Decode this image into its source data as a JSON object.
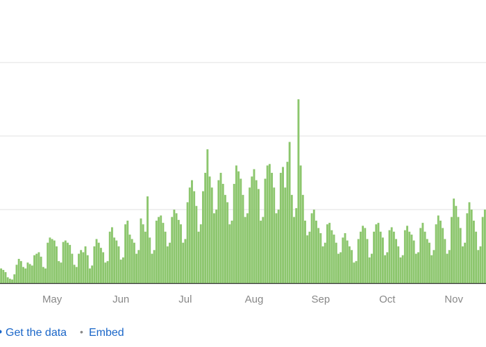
{
  "chart_data": {
    "type": "bar",
    "color": "#8cc66d",
    "grid": true,
    "ylim": [
      0,
      3.85
    ],
    "yticks": [
      0,
      1,
      2,
      3
    ],
    "categories": [
      null,
      null,
      null,
      null,
      null,
      null,
      null,
      null,
      null,
      null,
      null,
      null,
      null,
      null,
      null,
      null,
      null,
      null,
      null,
      null,
      null,
      null,
      null,
      "May",
      null,
      null,
      null,
      null,
      null,
      null,
      null,
      null,
      null,
      null,
      null,
      null,
      null,
      null,
      null,
      null,
      null,
      null,
      null,
      null,
      null,
      null,
      null,
      null,
      null,
      null,
      null,
      null,
      null,
      null,
      "Jun",
      null,
      null,
      null,
      null,
      null,
      null,
      null,
      null,
      null,
      null,
      null,
      null,
      null,
      null,
      null,
      null,
      null,
      null,
      null,
      null,
      null,
      null,
      null,
      null,
      null,
      null,
      null,
      null,
      "Jul",
      null,
      null,
      null,
      null,
      null,
      null,
      null,
      null,
      null,
      null,
      null,
      null,
      null,
      null,
      null,
      null,
      null,
      null,
      null,
      null,
      null,
      null,
      null,
      null,
      null,
      null,
      null,
      null,
      null,
      null,
      "Aug",
      null,
      null,
      null,
      null,
      null,
      null,
      null,
      null,
      null,
      null,
      null,
      null,
      null,
      null,
      null,
      null,
      null,
      null,
      null,
      null,
      null,
      null,
      null,
      null,
      null,
      null,
      null,
      null,
      null,
      "Sep",
      null,
      null,
      null,
      null,
      null,
      null,
      null,
      null,
      null,
      null,
      null,
      null,
      null,
      null,
      null,
      null,
      null,
      null,
      null,
      null,
      null,
      null,
      null,
      null,
      null,
      null,
      null,
      null,
      null,
      "Oct",
      null,
      null,
      null,
      null,
      null,
      null,
      null,
      null,
      null,
      null,
      null,
      null,
      null,
      null,
      null,
      null,
      null,
      null,
      null,
      null,
      null,
      null,
      null,
      null,
      null,
      null,
      null,
      null,
      null,
      "Nov",
      null,
      null,
      null,
      null,
      null,
      null,
      null,
      null,
      null,
      null,
      null,
      null,
      null,
      null
    ],
    "values": [
      0.2,
      0.18,
      0.15,
      0.08,
      0.06,
      0.05,
      0.12,
      0.25,
      0.33,
      0.3,
      0.22,
      0.2,
      0.28,
      0.26,
      0.24,
      0.38,
      0.4,
      0.42,
      0.36,
      0.22,
      0.2,
      0.55,
      0.62,
      0.6,
      0.58,
      0.5,
      0.3,
      0.28,
      0.56,
      0.58,
      0.55,
      0.52,
      0.4,
      0.25,
      0.22,
      0.4,
      0.45,
      0.42,
      0.5,
      0.38,
      0.2,
      0.24,
      0.5,
      0.6,
      0.55,
      0.48,
      0.42,
      0.28,
      0.3,
      0.7,
      0.76,
      0.62,
      0.58,
      0.5,
      0.32,
      0.35,
      0.8,
      0.85,
      0.66,
      0.6,
      0.55,
      0.4,
      0.45,
      0.88,
      0.8,
      0.7,
      1.18,
      0.62,
      0.4,
      0.45,
      0.85,
      0.9,
      0.92,
      0.82,
      0.7,
      0.5,
      0.55,
      0.9,
      1.0,
      0.95,
      0.86,
      0.8,
      0.55,
      0.6,
      1.1,
      1.3,
      1.4,
      1.25,
      1.05,
      0.7,
      0.8,
      1.25,
      1.5,
      1.82,
      1.45,
      1.3,
      0.95,
      1.0,
      1.4,
      1.5,
      1.35,
      1.2,
      1.1,
      0.8,
      0.85,
      1.35,
      1.6,
      1.52,
      1.42,
      1.2,
      0.9,
      0.95,
      1.3,
      1.45,
      1.55,
      1.4,
      1.28,
      0.85,
      0.9,
      1.42,
      1.6,
      1.62,
      1.5,
      1.3,
      0.95,
      1.0,
      1.5,
      1.58,
      1.3,
      1.65,
      1.92,
      1.2,
      0.9,
      1.02,
      2.5,
      1.6,
      1.2,
      0.85,
      0.65,
      0.7,
      0.95,
      1.0,
      0.85,
      0.75,
      0.68,
      0.5,
      0.55,
      0.8,
      0.82,
      0.72,
      0.66,
      0.55,
      0.4,
      0.42,
      0.62,
      0.68,
      0.58,
      0.5,
      0.45,
      0.28,
      0.3,
      0.6,
      0.7,
      0.78,
      0.75,
      0.6,
      0.35,
      0.4,
      0.7,
      0.8,
      0.82,
      0.7,
      0.62,
      0.38,
      0.42,
      0.72,
      0.76,
      0.7,
      0.6,
      0.5,
      0.35,
      0.38,
      0.72,
      0.78,
      0.7,
      0.66,
      0.58,
      0.4,
      0.42,
      0.75,
      0.82,
      0.7,
      0.6,
      0.55,
      0.38,
      0.45,
      0.8,
      0.92,
      0.85,
      0.75,
      0.6,
      0.4,
      0.45,
      0.9,
      1.15,
      1.05,
      0.9,
      0.75,
      0.5,
      0.55,
      0.95,
      1.1,
      1.0,
      0.85,
      0.7,
      0.45,
      0.5,
      0.9,
      1.0
    ]
  },
  "links": [
    "Get the data",
    "Embed"
  ]
}
